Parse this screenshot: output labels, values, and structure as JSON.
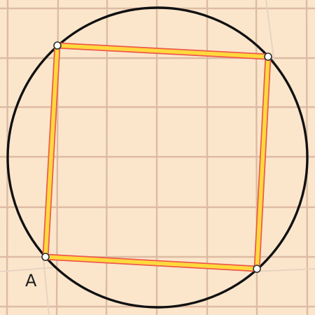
{
  "figure": {
    "background_color": "#fbe6cc",
    "grid_color": "#ddbba3",
    "circle_color": "#111111",
    "square_fill_color": "#ffd93d",
    "square_edge_color": "#ee5a4a",
    "vertex_color": "#ffffff"
  },
  "labels": {
    "point_a": "A"
  }
}
